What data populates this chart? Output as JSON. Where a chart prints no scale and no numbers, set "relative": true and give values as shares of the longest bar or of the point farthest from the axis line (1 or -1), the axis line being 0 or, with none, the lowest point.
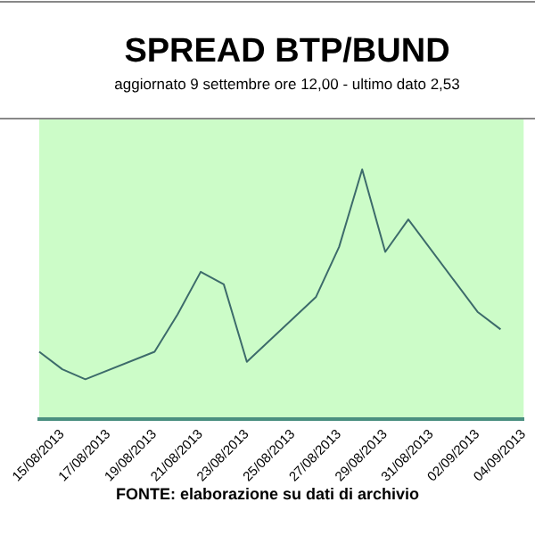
{
  "chart_data": {
    "type": "line",
    "title": "SPREAD BTP/BUND",
    "subtitle": "aggiornato 9 settembre ore 12,00 - ultimo dato 2,53",
    "categories": [
      null,
      "15/08/2013",
      null,
      "17/08/2013",
      null,
      "19/08/2013",
      null,
      "21/08/2013",
      null,
      "23/08/2013",
      null,
      "25/08/2013",
      null,
      "27/08/2013",
      null,
      "29/08/2013",
      null,
      "31/08/2013",
      null,
      "02/09/2013",
      null,
      "04/09/2013"
    ],
    "series": [
      {
        "color": "#3d6b6b",
        "values": [
          0.27,
          0.2,
          0.16,
          null,
          null,
          0.27,
          0.42,
          0.59,
          0.54,
          0.23,
          null,
          null,
          0.49,
          0.69,
          1,
          0.67,
          0.8,
          null,
          null,
          0.43,
          0.36,
          null
        ]
      }
    ],
    "relative": true,
    "legend": false,
    "marker": "none",
    "line_style": "solid",
    "annotations": [
      "FONTE: elaborazione su dati di archivio"
    ]
  }
}
